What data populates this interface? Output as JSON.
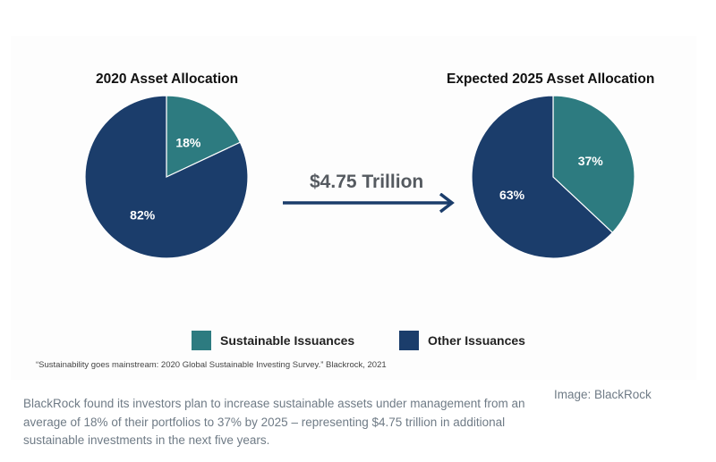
{
  "colors": {
    "sustainable": "#2d7b80",
    "other": "#1b3d6b"
  },
  "chart_data": [
    {
      "type": "pie",
      "title": "2020 Asset Allocation",
      "slices": [
        {
          "label": "Sustainable Issuances",
          "value": 18,
          "display": "18%"
        },
        {
          "label": "Other Issuances",
          "value": 82,
          "display": "82%"
        }
      ]
    },
    {
      "type": "pie",
      "title": "Expected 2025 Asset Allocation",
      "slices": [
        {
          "label": "Sustainable Issuances",
          "value": 37,
          "display": "37%"
        },
        {
          "label": "Other Issuances",
          "value": 63,
          "display": "63%"
        }
      ]
    }
  ],
  "transition": {
    "label": "$4.75 Trillion",
    "icon": "arrow-right-icon"
  },
  "legend": [
    {
      "label": "Sustainable Issuances"
    },
    {
      "label": "Other Issuances"
    }
  ],
  "source_note": "“Sustainability goes mainstream: 2020 Global Sustainable Investing Survey.” Blackrock, 2021",
  "caption": "BlackRock found its investors plan to increase sustainable assets under management from an average of 18% of their portfolios to 37% by 2025 – representing $4.75 trillion in additional sustainable investments in the next five years.",
  "credit": "Image: BlackRock"
}
